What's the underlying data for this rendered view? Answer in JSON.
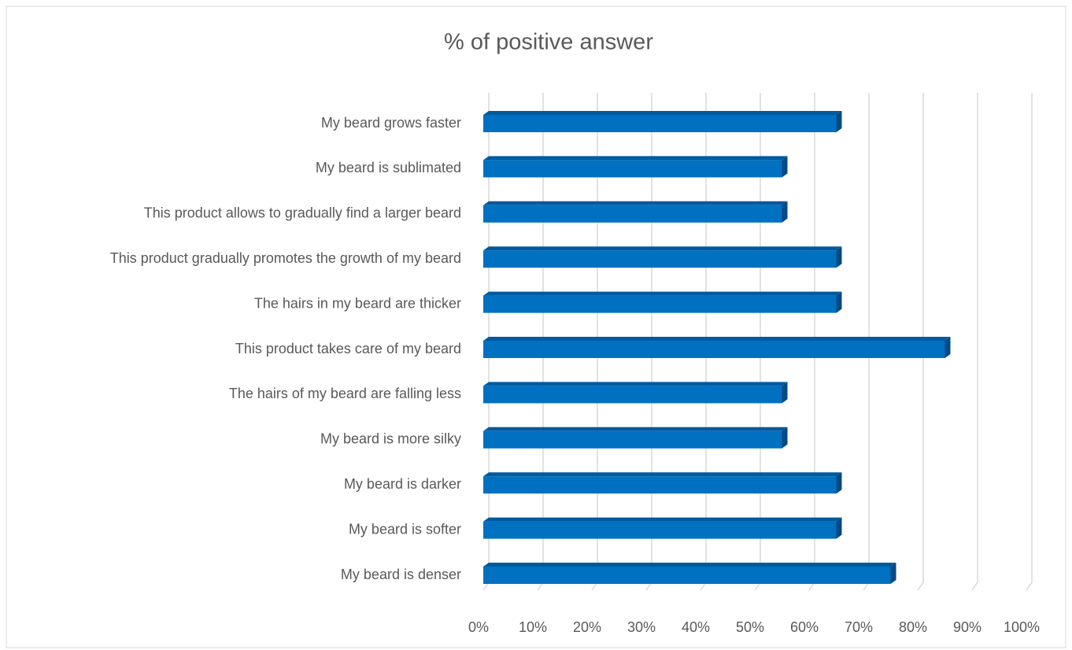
{
  "chart_data": {
    "type": "bar3d_horizontal",
    "title": "% of positive answer",
    "categories": [
      "My beard grows faster",
      "My beard is sublimated",
      "This product allows to gradually find a larger beard",
      "This product gradually promotes the growth of my beard",
      "The hairs in my beard are thicker",
      "This product takes care of my beard",
      "The hairs of my beard are falling less",
      "My beard is more silky",
      "My beard is darker",
      "My beard is softer",
      "My beard is denser"
    ],
    "values": [
      65,
      55,
      55,
      65,
      65,
      85,
      55,
      55,
      65,
      65,
      75
    ],
    "color": "#0070c0",
    "xlim": [
      0,
      100
    ],
    "xticks": [
      {
        "value": 0,
        "label": "0%"
      },
      {
        "value": 10,
        "label": "10%"
      },
      {
        "value": 20,
        "label": "20%"
      },
      {
        "value": 30,
        "label": "30%"
      },
      {
        "value": 40,
        "label": "40%"
      },
      {
        "value": 50,
        "label": "50%"
      },
      {
        "value": 60,
        "label": "60%"
      },
      {
        "value": 70,
        "label": "70%"
      },
      {
        "value": 80,
        "label": "80%"
      },
      {
        "value": 90,
        "label": "90%"
      },
      {
        "value": 100,
        "label": "100%"
      }
    ],
    "grid": true
  }
}
